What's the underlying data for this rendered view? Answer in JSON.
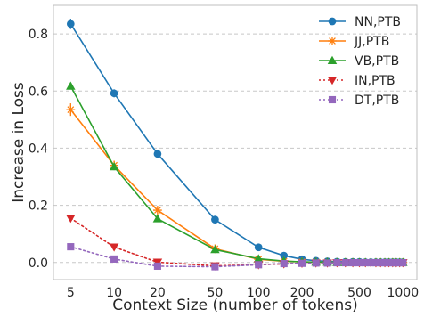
{
  "chart_data": {
    "type": "line",
    "title": "",
    "xlabel": "Context Size (number of tokens)",
    "ylabel": "Increase in Loss",
    "xscale": "log",
    "xlim": [
      3.8,
      1250
    ],
    "ylim": [
      -0.06,
      0.9
    ],
    "grid": "y",
    "legend_position": "top-right",
    "x_ticks": [
      5,
      10,
      20,
      50,
      100,
      200,
      500,
      1000
    ],
    "x_tick_labels": [
      "5",
      "10",
      "20",
      "50",
      "100",
      "200",
      "500",
      "1000"
    ],
    "y_ticks": [
      0.0,
      0.2,
      0.4,
      0.6,
      0.8
    ],
    "y_tick_labels": [
      "0.0",
      "0.2",
      "0.4",
      "0.6",
      "0.8"
    ],
    "x": [
      5,
      10,
      20,
      50,
      100,
      150,
      200,
      250,
      300,
      350,
      400,
      450,
      500,
      550,
      600,
      650,
      700,
      750,
      800,
      850,
      900,
      950,
      1000
    ],
    "series": [
      {
        "name": "NN,PTB",
        "color": "#1f77b4",
        "marker": "circle",
        "line_style": "solid",
        "values": [
          0.835,
          0.592,
          0.38,
          0.15,
          0.053,
          0.024,
          0.011,
          0.006,
          0.004,
          0.003,
          0.002,
          0.002,
          0.002,
          0.001,
          0.001,
          0.001,
          0.001,
          0.001,
          0.001,
          0.001,
          0.001,
          0.001,
          0.001
        ],
        "errors": [
          0.018,
          0.014,
          0.012,
          0.007,
          0.005,
          0.004,
          0.003,
          0.003,
          0.003,
          0.003,
          0.002,
          0.002,
          0.002,
          0.002,
          0.002,
          0.002,
          0.002,
          0.002,
          0.002,
          0.002,
          0.002,
          0.002,
          0.002
        ]
      },
      {
        "name": "JJ,PTB",
        "color": "#ff7f0e",
        "marker": "star",
        "line_style": "solid",
        "values": [
          0.535,
          0.34,
          0.183,
          0.048,
          0.011,
          0.004,
          0.002,
          0.001,
          0.001,
          0.0,
          0.0,
          0.0,
          0.0,
          0.0,
          0.0,
          0.0,
          0.0,
          0.0,
          0.0,
          0.0,
          0.0,
          0.0,
          0.0
        ],
        "errors": [
          0.022,
          0.016,
          0.014,
          0.008,
          0.005,
          0.004,
          0.003,
          0.003,
          0.003,
          0.003,
          0.002,
          0.002,
          0.002,
          0.002,
          0.002,
          0.002,
          0.002,
          0.002,
          0.002,
          0.002,
          0.002,
          0.002,
          0.002
        ]
      },
      {
        "name": "VB,PTB",
        "color": "#2ca02c",
        "marker": "triangle-up",
        "line_style": "solid",
        "values": [
          0.617,
          0.335,
          0.153,
          0.045,
          0.013,
          0.005,
          0.002,
          0.001,
          0.001,
          0.0,
          0.0,
          0.0,
          0.0,
          0.0,
          0.0,
          0.0,
          0.0,
          0.0,
          0.0,
          0.0,
          0.0,
          0.0,
          0.0
        ],
        "errors": [
          0.01,
          0.012,
          0.01,
          0.006,
          0.004,
          0.003,
          0.003,
          0.003,
          0.003,
          0.002,
          0.002,
          0.002,
          0.002,
          0.002,
          0.002,
          0.002,
          0.002,
          0.002,
          0.002,
          0.002,
          0.002,
          0.002,
          0.002
        ]
      },
      {
        "name": "IN,PTB",
        "color": "#d62728",
        "marker": "triangle-down",
        "line_style": "dotted",
        "values": [
          0.155,
          0.054,
          0.001,
          -0.012,
          -0.008,
          -0.005,
          -0.003,
          -0.002,
          -0.002,
          -0.001,
          -0.001,
          -0.001,
          -0.001,
          -0.001,
          -0.001,
          -0.001,
          -0.001,
          -0.001,
          -0.001,
          -0.001,
          -0.001,
          -0.001,
          -0.001
        ],
        "errors": [
          0.006,
          0.005,
          0.004,
          0.004,
          0.003,
          0.003,
          0.003,
          0.002,
          0.002,
          0.002,
          0.002,
          0.002,
          0.002,
          0.002,
          0.002,
          0.002,
          0.002,
          0.002,
          0.002,
          0.002,
          0.002,
          0.002,
          0.002
        ]
      },
      {
        "name": "DT,PTB",
        "color": "#9467bd",
        "marker": "square",
        "line_style": "dotted",
        "values": [
          0.055,
          0.012,
          -0.013,
          -0.015,
          -0.008,
          -0.004,
          -0.003,
          -0.002,
          -0.002,
          -0.001,
          -0.001,
          -0.001,
          -0.001,
          -0.001,
          -0.001,
          -0.001,
          -0.001,
          -0.001,
          -0.001,
          -0.001,
          -0.001,
          -0.001,
          -0.001
        ],
        "errors": [
          0.005,
          0.004,
          0.004,
          0.004,
          0.003,
          0.003,
          0.003,
          0.002,
          0.002,
          0.002,
          0.002,
          0.002,
          0.002,
          0.002,
          0.002,
          0.002,
          0.002,
          0.002,
          0.002,
          0.002,
          0.002,
          0.002,
          0.002
        ]
      }
    ]
  }
}
